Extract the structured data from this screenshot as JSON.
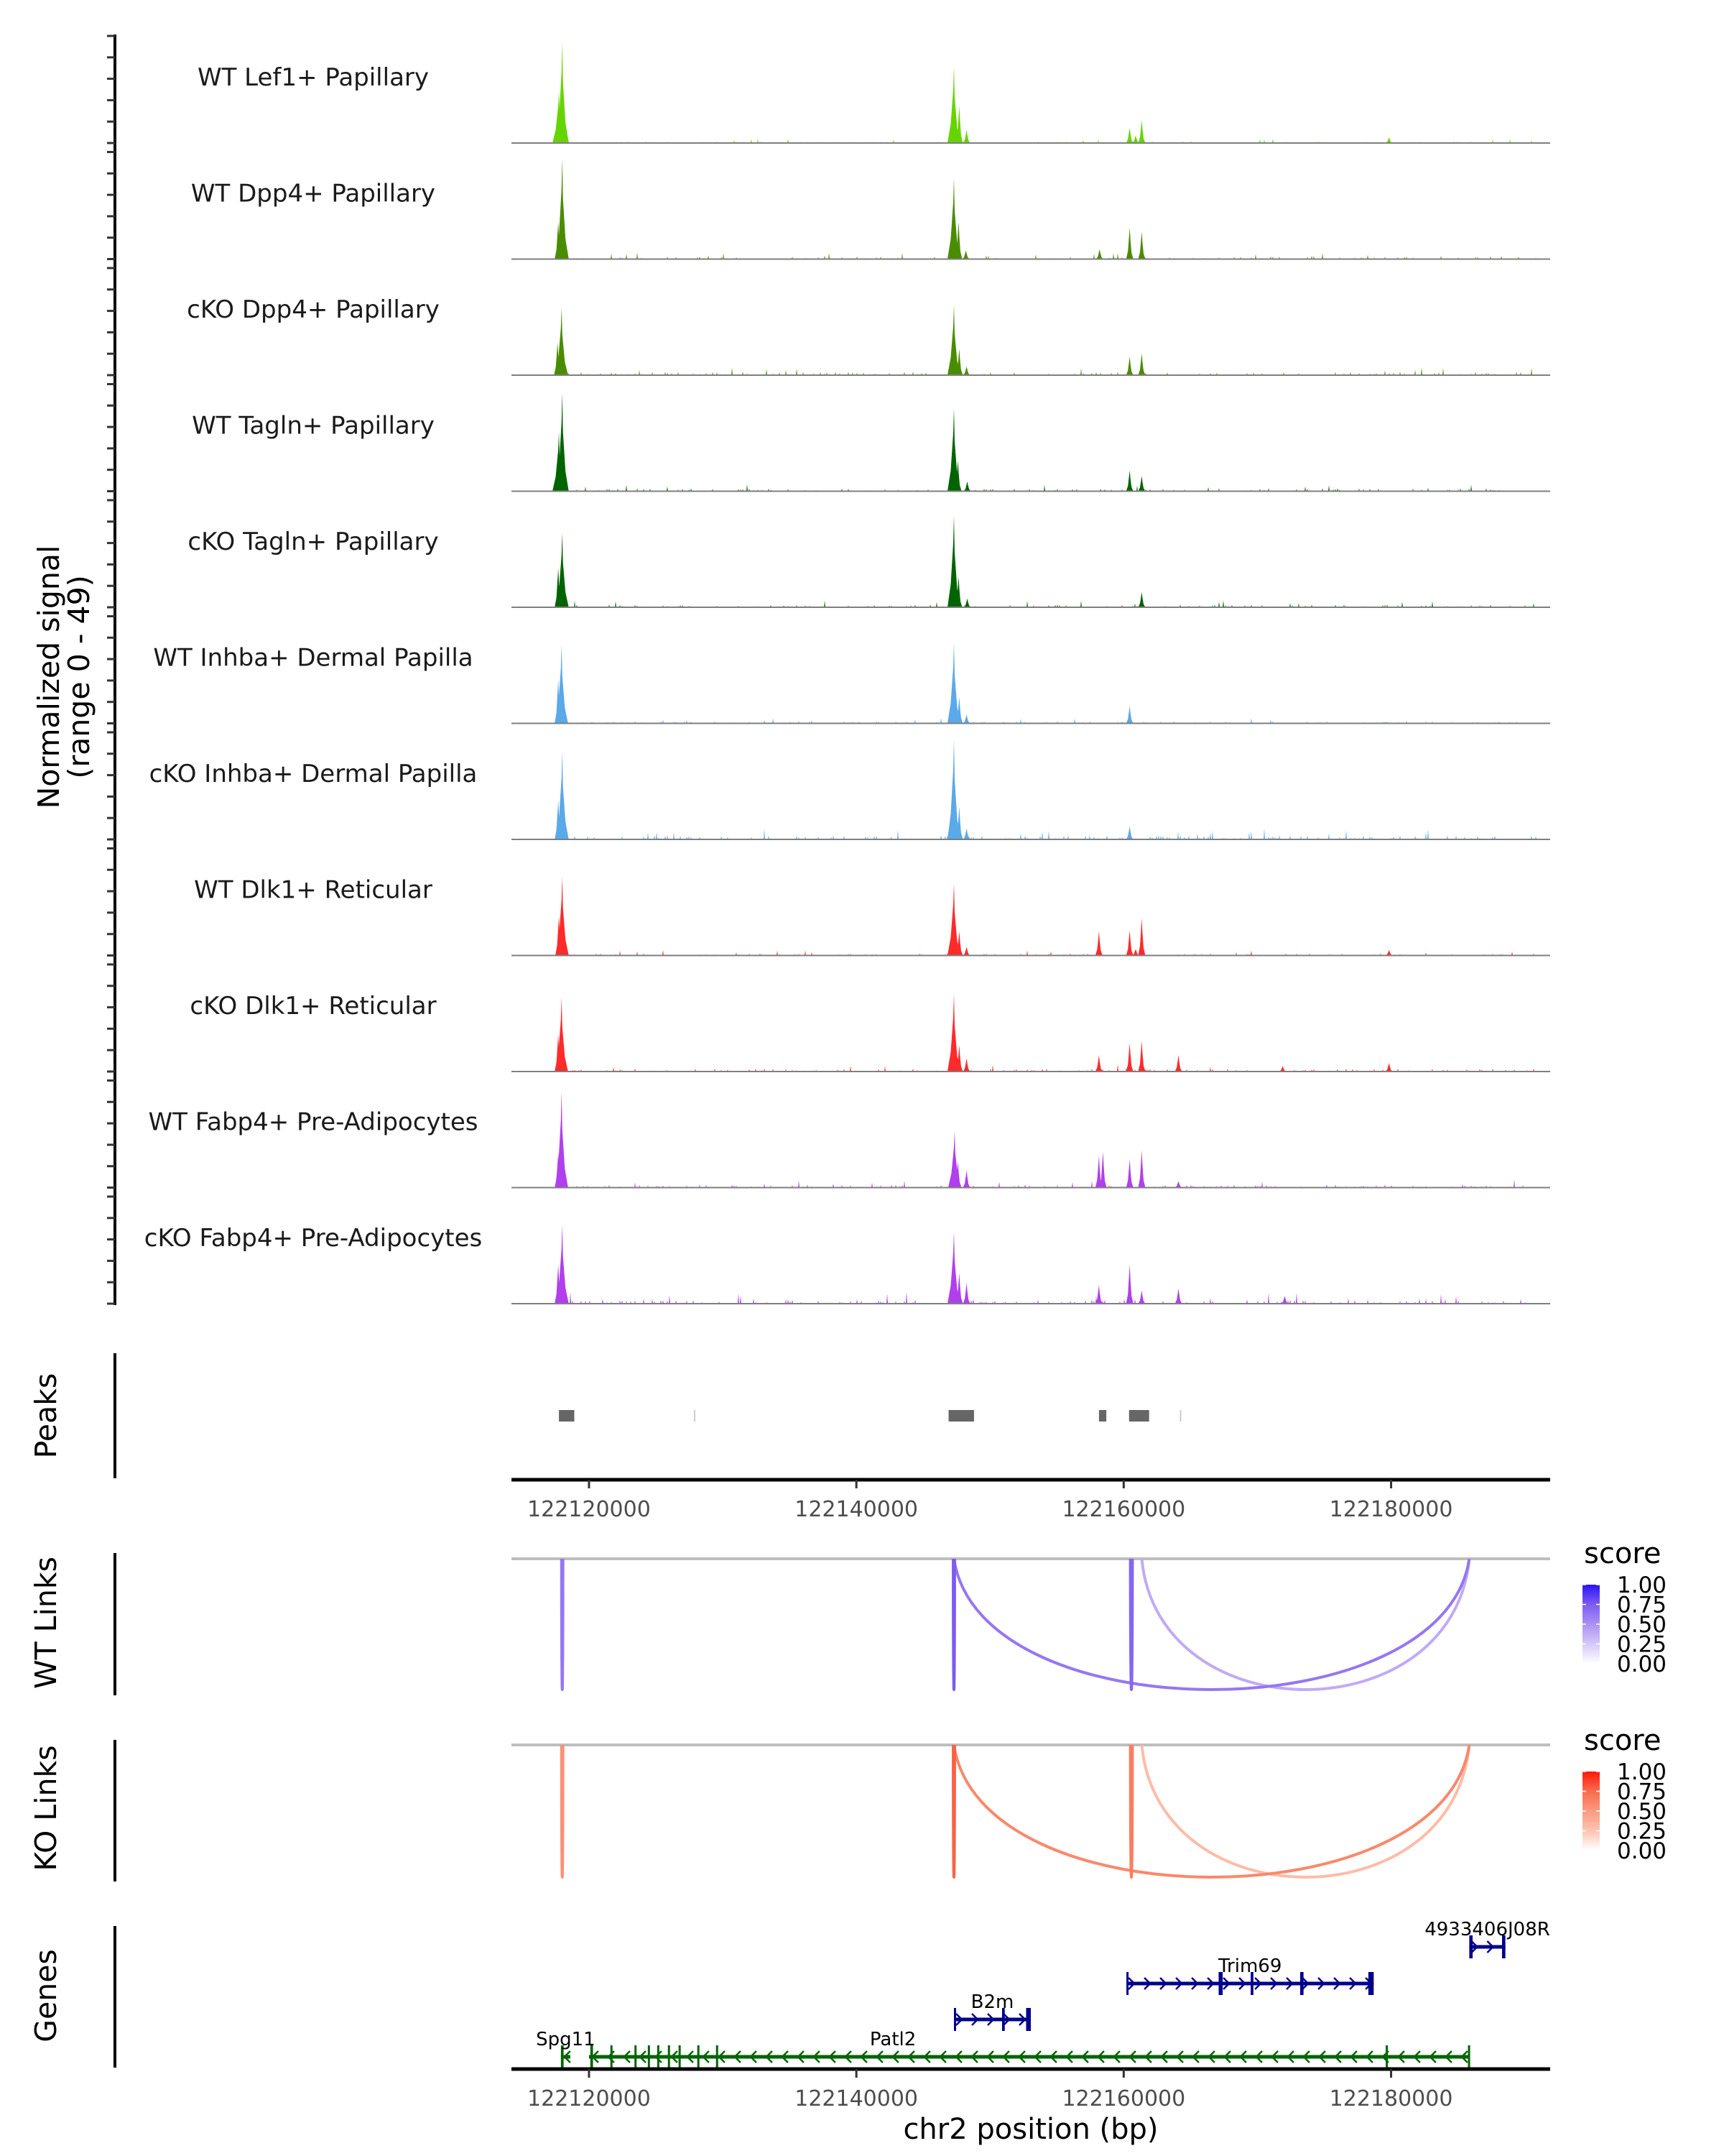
{
  "chart_data": {
    "type": "area",
    "title": "",
    "xlabel": "chr2 position (bp)",
    "ylabel": "Normalized signal\n(range 0 - 49)",
    "ylabel_lines": [
      "Normalized signal",
      "(range 0 - 49)"
    ],
    "ylim": [
      0,
      49
    ],
    "xlim": [
      122114200,
      122191900
    ],
    "x_ticks": [
      122120000,
      122140000,
      122160000,
      122180000
    ],
    "x_tick_labels": [
      "122120000",
      "122140000",
      "122160000",
      "122180000"
    ],
    "tracks": [
      {
        "label": "WT Lef1+ Papillary",
        "color": "#66d400",
        "noise": 0.8,
        "peaks": [
          [
            122118000,
            46
          ],
          [
            122117750,
            24
          ],
          [
            122147300,
            35
          ],
          [
            122147700,
            17
          ],
          [
            122148250,
            6
          ],
          [
            122160450,
            7
          ],
          [
            122160900,
            3.5
          ],
          [
            122161350,
            10.5
          ],
          [
            122179850,
            2.5
          ]
        ]
      },
      {
        "label": "WT Dpp4+ Papillary",
        "color": "#4a8c00",
        "noise": 1.2,
        "peaks": [
          [
            122118000,
            46
          ],
          [
            122117700,
            17
          ],
          [
            122147300,
            37
          ],
          [
            122147650,
            17
          ],
          [
            122148200,
            4
          ],
          [
            122158200,
            4.5
          ],
          [
            122160450,
            14.5
          ],
          [
            122161350,
            12.5
          ]
        ]
      },
      {
        "label": "cKO Dpp4+ Papillary",
        "color": "#4a8c00",
        "noise": 1.6,
        "peaks": [
          [
            122117950,
            31
          ],
          [
            122117650,
            15
          ],
          [
            122147300,
            32
          ],
          [
            122147700,
            12
          ],
          [
            122148250,
            4
          ],
          [
            122160450,
            8.5
          ],
          [
            122161350,
            10
          ]
        ]
      },
      {
        "label": "WT Tagln+ Papillary",
        "color": "#006400",
        "noise": 1.4,
        "peaks": [
          [
            122118000,
            45
          ],
          [
            122117750,
            27
          ],
          [
            122147300,
            38
          ],
          [
            122147600,
            14
          ],
          [
            122148300,
            4.5
          ],
          [
            122160450,
            9.5
          ],
          [
            122161350,
            7
          ]
        ]
      },
      {
        "label": "cKO Tagln+ Papillary",
        "color": "#006400",
        "noise": 1.3,
        "peaks": [
          [
            122118000,
            34
          ],
          [
            122117700,
            18
          ],
          [
            122147300,
            42
          ],
          [
            122147650,
            14
          ],
          [
            122148300,
            4
          ],
          [
            122161350,
            7
          ]
        ]
      },
      {
        "label": "WT Inhba+ Dermal Papilla",
        "color": "#5aa9e8",
        "noise": 1.0,
        "peaks": [
          [
            122117950,
            36
          ],
          [
            122117700,
            20
          ],
          [
            122147300,
            37
          ],
          [
            122147700,
            12
          ],
          [
            122148250,
            4
          ],
          [
            122160450,
            8
          ]
        ]
      },
      {
        "label": "cKO Inhba+ Dermal Papilla",
        "color": "#5aa9e8",
        "noise": 2.0,
        "peaks": [
          [
            122118000,
            40
          ],
          [
            122117700,
            18
          ],
          [
            122147300,
            46
          ],
          [
            122147700,
            15
          ],
          [
            122148250,
            5
          ],
          [
            122160450,
            6
          ]
        ]
      },
      {
        "label": "WT Dlk1+ Reticular",
        "color": "#ff2a2a",
        "noise": 1.0,
        "peaks": [
          [
            122118000,
            36
          ],
          [
            122117750,
            18
          ],
          [
            122147300,
            33
          ],
          [
            122147700,
            11
          ],
          [
            122148250,
            4
          ],
          [
            122158150,
            11
          ],
          [
            122160450,
            11.5
          ],
          [
            122160900,
            3
          ],
          [
            122161350,
            17
          ],
          [
            122179850,
            2.5
          ]
        ]
      },
      {
        "label": "cKO Dlk1+ Reticular",
        "color": "#ff2a2a",
        "noise": 1.4,
        "peaks": [
          [
            122117950,
            34
          ],
          [
            122117700,
            17
          ],
          [
            122147300,
            35.5
          ],
          [
            122147700,
            12
          ],
          [
            122148250,
            6
          ],
          [
            122158150,
            7.5
          ],
          [
            122160450,
            13
          ],
          [
            122161350,
            14
          ],
          [
            122164100,
            7.5
          ],
          [
            122171900,
            2.5
          ],
          [
            122179850,
            4
          ]
        ]
      },
      {
        "label": "WT Fabp4+ Pre-Adipocytes",
        "color": "#b13fec",
        "noise": 1.5,
        "peaks": [
          [
            122117950,
            44
          ],
          [
            122117700,
            16
          ],
          [
            122147350,
            26
          ],
          [
            122147600,
            12
          ],
          [
            122148250,
            8
          ],
          [
            122158150,
            14.5
          ],
          [
            122158450,
            16.5
          ],
          [
            122160450,
            13
          ],
          [
            122161350,
            17
          ],
          [
            122164100,
            3
          ]
        ]
      },
      {
        "label": "cKO Fabp4+ Pre-Adipocytes",
        "color": "#b13fec",
        "noise": 2.2,
        "peaks": [
          [
            122118000,
            36
          ],
          [
            122117700,
            18
          ],
          [
            122147300,
            33
          ],
          [
            122147700,
            14
          ],
          [
            122148250,
            9.5
          ],
          [
            122158150,
            8.5
          ],
          [
            122160450,
            18
          ],
          [
            122161350,
            6
          ],
          [
            122164100,
            7
          ],
          [
            122172050,
            3.5
          ]
        ]
      }
    ],
    "peaks_track": {
      "label": "Peaks",
      "color": "#666666",
      "regions": [
        [
          122117750,
          122118900
        ],
        [
          122127850,
          122127950
        ],
        [
          122146900,
          122148800
        ],
        [
          122158150,
          122158700
        ],
        [
          122160400,
          122161900
        ],
        [
          122164200,
          122164300
        ]
      ]
    },
    "link_tracks": [
      {
        "label": "WT Links",
        "legend_title": "score",
        "color_stops": [
          "#ffffff",
          "#d6c8f9",
          "#ab91f4",
          "#7c5bf2",
          "#2a14f5"
        ],
        "links": [
          {
            "start": 122117950,
            "end": 122118050,
            "score": 0.62
          },
          {
            "start": 122147250,
            "end": 122147350,
            "score": 0.75
          },
          {
            "start": 122160500,
            "end": 122160650,
            "score": 0.7
          },
          {
            "start": 122147300,
            "end": 122185850,
            "score": 0.62
          },
          {
            "start": 122161350,
            "end": 122185850,
            "score": 0.38
          }
        ]
      },
      {
        "label": "KO Links",
        "legend_title": "score",
        "color_stops": [
          "#ffffff",
          "#fdc4b2",
          "#fb9a80",
          "#f86c4d",
          "#ff1a08"
        ],
        "links": [
          {
            "start": 122117950,
            "end": 122118050,
            "score": 0.55
          },
          {
            "start": 122147250,
            "end": 122147350,
            "score": 0.78
          },
          {
            "start": 122160500,
            "end": 122160650,
            "score": 0.65
          },
          {
            "start": 122147300,
            "end": 122185850,
            "score": 0.6
          },
          {
            "start": 122161350,
            "end": 122185850,
            "score": 0.3
          }
        ]
      }
    ],
    "legend_ticks": [
      "1.00",
      "0.75",
      "0.50",
      "0.25",
      "0.00"
    ],
    "genes_track": {
      "label": "Genes",
      "genes": [
        {
          "name": "4933406J08R",
          "start": 122185850,
          "end": 122188550,
          "strand": "+",
          "row": 0,
          "color": "#00008b",
          "exons": [
            [
              122185850,
              122186100
            ],
            [
              122188300,
              122188550
            ]
          ]
        },
        {
          "name": "Trim69",
          "start": 122160200,
          "end": 122178700,
          "strand": "+",
          "row": 1,
          "color": "#00008b",
          "exons": [
            [
              122160200,
              122160350
            ],
            [
              122167100,
              122167400
            ],
            [
              122169500,
              122169700
            ],
            [
              122173200,
              122173450
            ],
            [
              122178300,
              122178700
            ]
          ]
        },
        {
          "name": "B2m",
          "start": 122147300,
          "end": 122153050,
          "strand": "+",
          "row": 2,
          "color": "#00008b",
          "exons": [
            [
              122147300,
              122147450
            ],
            [
              122150900,
              122151100
            ],
            [
              122152700,
              122153050
            ]
          ]
        },
        {
          "name": "Patl2",
          "start": 122120000,
          "end": 122185900,
          "strand": "-",
          "row": 3,
          "color": "#006400",
          "exons": [
            [
              122120100,
              122120300
            ],
            [
              122121600,
              122121750
            ],
            [
              122123400,
              122123550
            ],
            [
              122124400,
              122124550
            ],
            [
              122125100,
              122125250
            ],
            [
              122125900,
              122126050
            ],
            [
              122126700,
              122126850
            ],
            [
              122128100,
              122128250
            ],
            [
              122129500,
              122129650
            ],
            [
              122179600,
              122179750
            ],
            [
              122185750,
              122185900
            ]
          ]
        },
        {
          "name": "Spg11",
          "start": 122117900,
          "end": 122118600,
          "strand": "-",
          "row": 3,
          "color": "#006400",
          "exons": [
            [
              122117900,
              122118100
            ]
          ]
        }
      ]
    }
  }
}
